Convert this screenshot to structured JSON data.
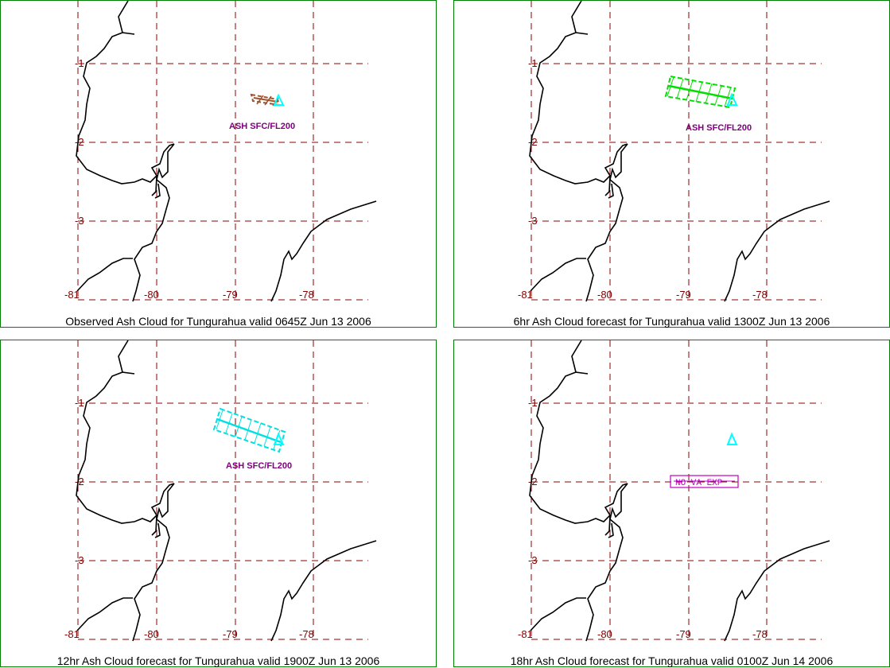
{
  "colors": {
    "frame": "#008000",
    "grid": "#8b0000",
    "coast": "#000000",
    "ash_label": "#800080",
    "volcano": "#00ffff",
    "nova_box": "#c000c0"
  },
  "panels": [
    {
      "caption": "Observed Ash Cloud for Tungurahua valid 0645Z Jun 13 2006",
      "lat_labels": [
        "-1",
        "-2",
        "-3"
      ],
      "lon_labels": [
        "-81",
        "-80",
        "-79",
        "-78"
      ],
      "cloud_label": "ASH SFC/FL200",
      "cloud_color": "#a0522d",
      "cloud_icon": "hatched-ash-polygon"
    },
    {
      "caption": "6hr Ash Cloud forecast for Tungurahua valid 1300Z Jun 13 2006",
      "lat_labels": [
        "-1",
        "-2",
        "-3"
      ],
      "lon_labels": [
        "-81",
        "-80",
        "-79",
        "-78"
      ],
      "cloud_label": "ASH SFC/FL200",
      "cloud_color": "#00e000",
      "cloud_icon": "hatched-ash-polygon"
    },
    {
      "caption": "12hr Ash Cloud forecast for Tungurahua valid 1900Z Jun 13 2006",
      "lat_labels": [
        "-1",
        "-2",
        "-3"
      ],
      "lon_labels": [
        "-81",
        "-80",
        "-79",
        "-78"
      ],
      "cloud_label": "ASH SFC/FL200",
      "cloud_color": "#00e0e0",
      "cloud_icon": "hatched-ash-polygon"
    },
    {
      "caption": "18hr Ash Cloud forecast for Tungurahua valid 0100Z Jun 14 2006",
      "lat_labels": [
        "-1",
        "-2",
        "-3"
      ],
      "lon_labels": [
        "-81",
        "-80",
        "-79",
        "-78"
      ],
      "nova_label": "NO VA EXP",
      "cloud_icon": "none"
    }
  ],
  "volcano_icon": "triangle-volcano-icon"
}
